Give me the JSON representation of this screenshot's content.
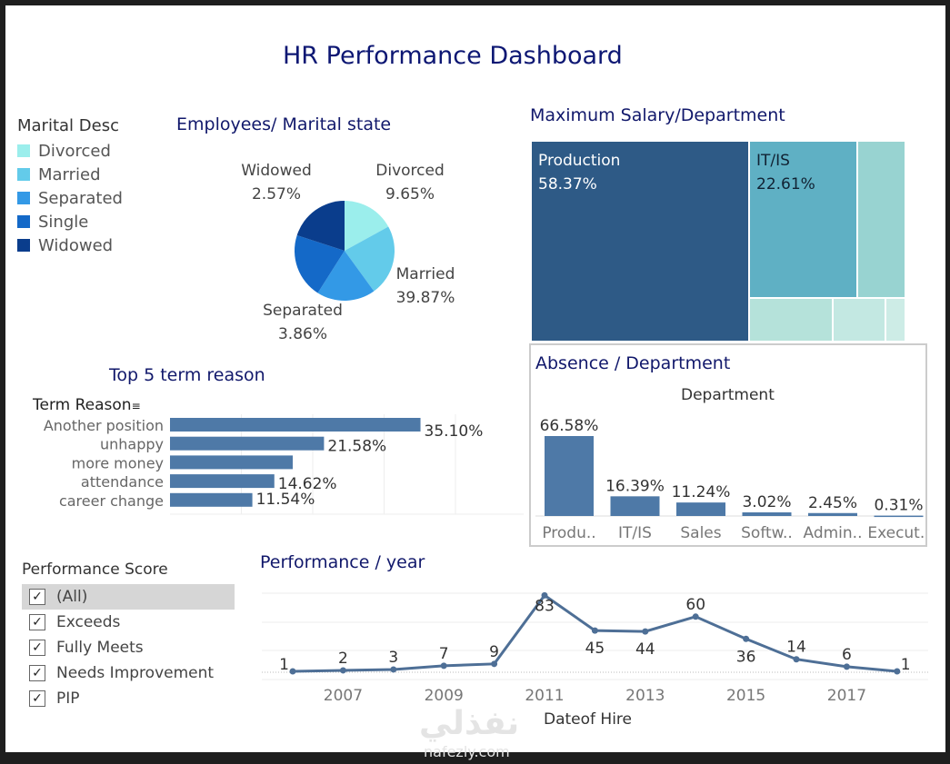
{
  "dashboard_title": "HR Performance Dashboard",
  "marital_legend": {
    "title": "Marital Desc",
    "items": [
      {
        "label": "Divorced",
        "color": "#9beeec"
      },
      {
        "label": "Married",
        "color": "#63cbea"
      },
      {
        "label": "Separated",
        "color": "#3399e6"
      },
      {
        "label": "Single",
        "color": "#1469c8"
      },
      {
        "label": "Widowed",
        "color": "#0a3d8c"
      }
    ]
  },
  "performance_filter": {
    "title": "Performance Score",
    "options": [
      {
        "label": "(All)",
        "checked": true
      },
      {
        "label": "Exceeds",
        "checked": true
      },
      {
        "label": "Fully Meets",
        "checked": true
      },
      {
        "label": "Needs Improvement",
        "checked": true
      },
      {
        "label": "PIP",
        "checked": true
      }
    ]
  },
  "watermark": {
    "arabic": "نفذلي",
    "latin": "nafezly.com"
  },
  "chart_data": [
    {
      "type": "pie",
      "title": "Employees/ Marital state",
      "categories": [
        "Divorced",
        "Married",
        "Separated",
        "Single",
        "Widowed"
      ],
      "label_texts": [
        "9.65%",
        "39.87%",
        "3.86%",
        null,
        "2.57%"
      ],
      "drawn_share": [
        17,
        23,
        19,
        21,
        20
      ],
      "colors": [
        "#9beeec",
        "#63cbea",
        "#3399e6",
        "#1469c8",
        "#0a3d8c"
      ]
    },
    {
      "type": "treemap",
      "title": "Maximum Salary/Department",
      "categories": [
        "Production",
        "IT/IS"
      ],
      "value_labels": [
        "58.37%",
        "22.61%"
      ],
      "colors": [
        "#2e5a86",
        "#5fb0c4",
        "#98d3d1",
        "#b5e2da",
        "#c3e8e2",
        "#cdece6"
      ]
    },
    {
      "type": "bar",
      "orientation": "horizontal",
      "title": "Top 5 term reason",
      "axis_header": "Term Reason",
      "categories": [
        "Another position",
        "unhappy",
        "more money",
        "attendance",
        "career change"
      ],
      "values": [
        35.1,
        21.58,
        17.2,
        14.62,
        11.54
      ],
      "value_labels": [
        "35.10%",
        "21.58%",
        null,
        "14.62%",
        "11.54%"
      ],
      "xlim": [
        0,
        45
      ],
      "color": "#4e79a7"
    },
    {
      "type": "bar",
      "title": "Absence / Department",
      "axis_header": "Department",
      "categories": [
        "Produ..",
        "IT/IS",
        "Sales",
        "Softw..",
        "Admin..",
        "Execut.."
      ],
      "values": [
        66.58,
        16.39,
        11.24,
        3.02,
        2.45,
        0.31
      ],
      "value_labels": [
        "66.58%",
        "16.39%",
        "11.24%",
        "3.02%",
        "2.45%",
        "0.31%"
      ],
      "ylim": [
        0,
        70
      ],
      "color": "#4e79a7"
    },
    {
      "type": "line",
      "title": "Performance / year",
      "xlabel": "Dateof Hire",
      "x": [
        2006,
        2007,
        2008,
        2009,
        2010,
        2011,
        2012,
        2013,
        2014,
        2015,
        2016,
        2017,
        2018
      ],
      "values": [
        1,
        2,
        3,
        7,
        9,
        83,
        45,
        44,
        60,
        36,
        14,
        6,
        1
      ],
      "x_ticks": [
        "2007",
        "2009",
        "2011",
        "2013",
        "2015",
        "2017"
      ],
      "ylim": [
        0,
        85
      ],
      "grid": true,
      "color": "#4e6f96"
    }
  ]
}
